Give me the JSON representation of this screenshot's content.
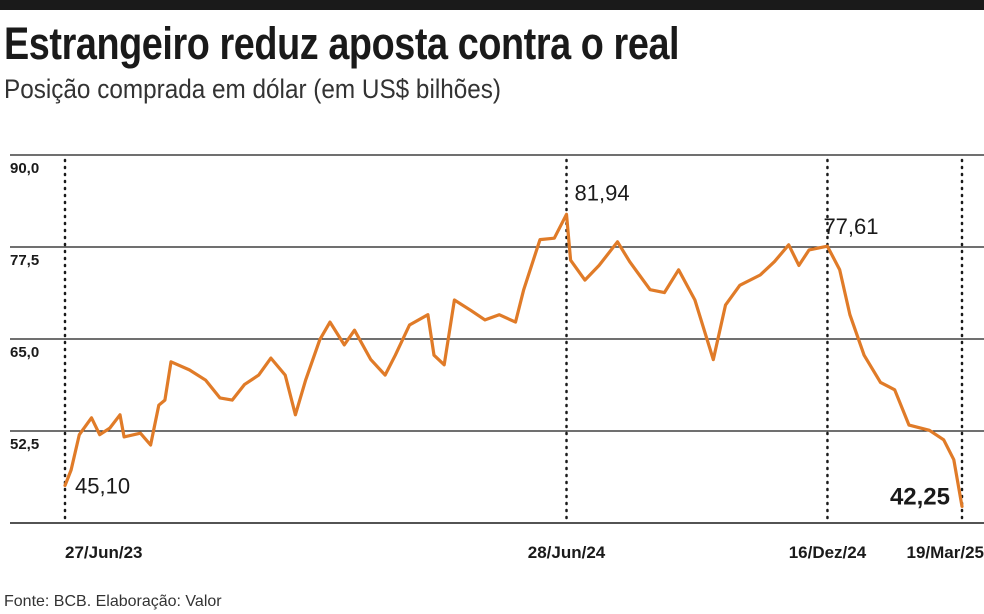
{
  "title": "Estrangeiro reduz aposta contra o real",
  "subtitle": "Posição comprada em dólar (em US$ bilhões)",
  "source": "Fonte: BCB. Elaboração: Valor",
  "colors": {
    "line": "#e07b28",
    "grid": "#1a1a1a",
    "text": "#1a1a1a"
  },
  "chart_data": {
    "type": "line",
    "title": "Estrangeiro reduz aposta contra o real",
    "ylabel": "US$ bilhões",
    "xlabel": "",
    "ylim": [
      40,
      90
    ],
    "xlim": [
      0,
      440
    ],
    "yticks": [
      {
        "value": 90,
        "label": "90,0"
      },
      {
        "value": 77.5,
        "label": "77,5"
      },
      {
        "value": 65,
        "label": "65,0"
      },
      {
        "value": 52.5,
        "label": "52,5"
      }
    ],
    "date_markers": [
      {
        "x": 0,
        "label": "27/Jun/23"
      },
      {
        "x": 246,
        "label": "28/Jun/24"
      },
      {
        "x": 374,
        "label": "16/Dez/24"
      },
      {
        "x": 440,
        "label": "19/Mar/25"
      }
    ],
    "annotations": [
      {
        "x": 0,
        "y": 45.1,
        "label": "45,10",
        "bold": false
      },
      {
        "x": 246,
        "y": 81.94,
        "label": "81,94",
        "bold": false
      },
      {
        "x": 374,
        "y": 77.61,
        "label": "77,61",
        "bold": false
      },
      {
        "x": 440,
        "y": 42.25,
        "label": "42,25",
        "bold": true
      }
    ],
    "series": [
      {
        "name": "Posição comprada em dólar",
        "x": [
          0,
          3,
          7,
          13,
          17,
          22,
          27,
          29,
          37,
          42,
          46,
          49,
          52,
          61,
          69,
          76,
          82,
          88,
          95,
          101,
          108,
          113,
          118,
          125,
          130,
          137,
          142,
          150,
          157,
          162,
          169,
          178,
          181,
          186,
          191,
          199,
          206,
          213,
          221,
          225,
          233,
          240,
          246,
          248,
          255,
          262,
          271,
          277,
          287,
          294,
          301,
          309,
          318,
          324,
          331,
          341,
          348,
          355,
          360,
          365,
          374,
          380,
          385,
          392,
          400,
          407,
          414,
          424,
          431,
          436,
          440
        ],
        "values": [
          45.1,
          47.2,
          52,
          54.3,
          52,
          52.9,
          54.7,
          51.7,
          52.2,
          50.6,
          56,
          56.7,
          61.9,
          60.8,
          59.4,
          57,
          56.7,
          58.8,
          60.1,
          62.4,
          60.1,
          54.7,
          59.4,
          64.9,
          67.3,
          64.2,
          66.2,
          62.2,
          60.1,
          62.8,
          66.9,
          68.3,
          62.8,
          61.5,
          70.3,
          68.9,
          67.6,
          68.3,
          67.3,
          71.7,
          78.5,
          78.7,
          81.94,
          75.7,
          73,
          75,
          78.2,
          75.5,
          71.7,
          71.3,
          74.4,
          70.3,
          62.2,
          69.6,
          72.3,
          73.7,
          75.5,
          77.8,
          75,
          77.1,
          77.61,
          74.4,
          68.3,
          62.8,
          59.1,
          58.1,
          53.3,
          52.6,
          51.3,
          48.6,
          42.25
        ]
      }
    ]
  }
}
